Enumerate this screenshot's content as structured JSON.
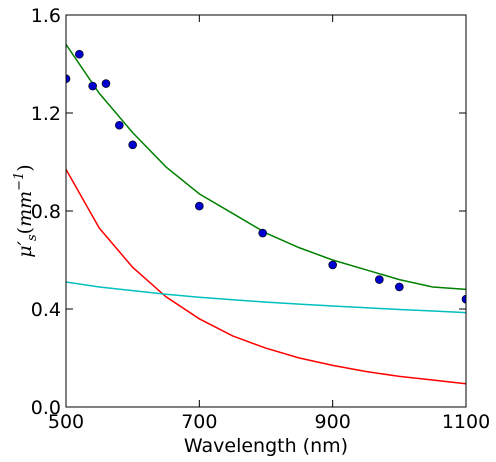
{
  "chart_data": {
    "type": "scatter",
    "title": "",
    "xlabel": "Wavelength (nm)",
    "ylabel": {
      "symbol": "μ",
      "prime": "′",
      "subscript": "s",
      "open": "(",
      "unit": "mm",
      "exponent": "−1",
      "close": ")"
    },
    "xlim": [
      500,
      1100
    ],
    "ylim": [
      0.0,
      1.6
    ],
    "x_ticks": [
      {
        "value": 500,
        "label": "500"
      },
      {
        "value": 700,
        "label": "700"
      },
      {
        "value": 900,
        "label": "900"
      },
      {
        "value": 1100,
        "label": "1100"
      }
    ],
    "y_ticks": [
      {
        "value": 0.0,
        "label": "0.0"
      },
      {
        "value": 0.4,
        "label": "0.4"
      },
      {
        "value": 0.8,
        "label": "0.8"
      },
      {
        "value": 1.2,
        "label": "1.2"
      },
      {
        "value": 1.6,
        "label": "1.6"
      }
    ],
    "grid": false,
    "legend": "none",
    "scatter": {
      "color": "#0000cc",
      "edge_color": "#000000",
      "points": [
        {
          "x": 500,
          "y": 1.34
        },
        {
          "x": 520,
          "y": 1.44
        },
        {
          "x": 540,
          "y": 1.31
        },
        {
          "x": 560,
          "y": 1.32
        },
        {
          "x": 580,
          "y": 1.15
        },
        {
          "x": 600,
          "y": 1.07
        },
        {
          "x": 700,
          "y": 0.82
        },
        {
          "x": 795,
          "y": 0.71
        },
        {
          "x": 900,
          "y": 0.58
        },
        {
          "x": 970,
          "y": 0.52
        },
        {
          "x": 1000,
          "y": 0.49
        },
        {
          "x": 1100,
          "y": 0.44
        }
      ]
    },
    "lines": [
      {
        "color": "#008000",
        "points": [
          {
            "x": 500,
            "y": 1.48
          },
          {
            "x": 550,
            "y": 1.28
          },
          {
            "x": 600,
            "y": 1.12
          },
          {
            "x": 650,
            "y": 0.98
          },
          {
            "x": 700,
            "y": 0.87
          },
          {
            "x": 750,
            "y": 0.79
          },
          {
            "x": 800,
            "y": 0.71
          },
          {
            "x": 850,
            "y": 0.65
          },
          {
            "x": 900,
            "y": 0.6
          },
          {
            "x": 950,
            "y": 0.56
          },
          {
            "x": 1000,
            "y": 0.52
          },
          {
            "x": 1050,
            "y": 0.49
          },
          {
            "x": 1100,
            "y": 0.48
          }
        ]
      },
      {
        "color": "#ff0000",
        "points": [
          {
            "x": 500,
            "y": 0.97
          },
          {
            "x": 550,
            "y": 0.73
          },
          {
            "x": 600,
            "y": 0.57
          },
          {
            "x": 650,
            "y": 0.45
          },
          {
            "x": 700,
            "y": 0.36
          },
          {
            "x": 750,
            "y": 0.29
          },
          {
            "x": 800,
            "y": 0.24
          },
          {
            "x": 850,
            "y": 0.2
          },
          {
            "x": 900,
            "y": 0.17
          },
          {
            "x": 950,
            "y": 0.145
          },
          {
            "x": 1000,
            "y": 0.125
          },
          {
            "x": 1050,
            "y": 0.11
          },
          {
            "x": 1100,
            "y": 0.095
          }
        ]
      },
      {
        "color": "#00bfbf",
        "points": [
          {
            "x": 500,
            "y": 0.51
          },
          {
            "x": 550,
            "y": 0.49
          },
          {
            "x": 600,
            "y": 0.475
          },
          {
            "x": 650,
            "y": 0.46
          },
          {
            "x": 700,
            "y": 0.448
          },
          {
            "x": 750,
            "y": 0.438
          },
          {
            "x": 800,
            "y": 0.428
          },
          {
            "x": 850,
            "y": 0.42
          },
          {
            "x": 900,
            "y": 0.412
          },
          {
            "x": 950,
            "y": 0.405
          },
          {
            "x": 1000,
            "y": 0.398
          },
          {
            "x": 1050,
            "y": 0.392
          },
          {
            "x": 1100,
            "y": 0.385
          }
        ]
      }
    ]
  }
}
